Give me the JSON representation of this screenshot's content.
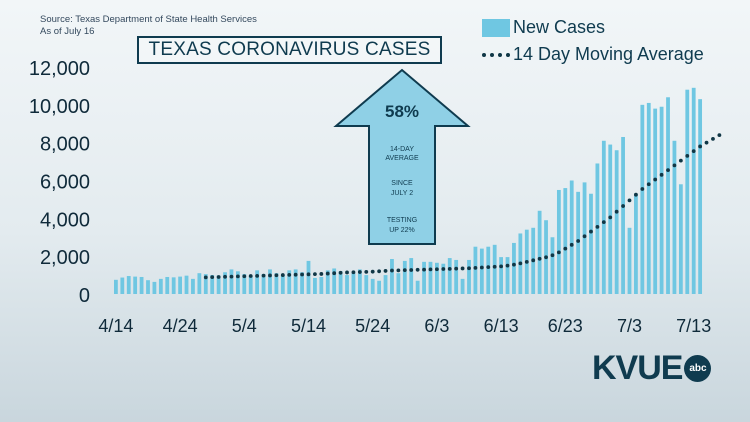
{
  "source": {
    "line1": "Source: Texas Department of State Health Services",
    "line2": "As of July 16"
  },
  "chart_data": {
    "type": "bar",
    "title": "TEXAS CORONAVIRUS CASES",
    "xlabel": "",
    "ylabel": "",
    "ylim": [
      0,
      12000
    ],
    "yticks": [
      "0",
      "2,000",
      "4,000",
      "6,000",
      "8,000",
      "10,000",
      "12,000"
    ],
    "xticks": [
      "4/14",
      "4/24",
      "5/4",
      "5/14",
      "5/24",
      "6/3",
      "6/13",
      "6/23",
      "7/3",
      "7/13"
    ],
    "legend": {
      "position": "top-right",
      "entries": [
        "New Cases",
        "14 Day Moving Average"
      ]
    },
    "grid": false,
    "series": [
      {
        "name": "New Cases",
        "kind": "bar",
        "color": "#6fc7e2",
        "values": [
          750,
          870,
          950,
          920,
          900,
          730,
          640,
          800,
          900,
          880,
          920,
          970,
          800,
          1100,
          1050,
          1000,
          980,
          1150,
          1300,
          1200,
          1050,
          950,
          1250,
          1050,
          1300,
          1100,
          1000,
          1250,
          1300,
          1150,
          1750,
          850,
          900,
          1250,
          1350,
          1200,
          1000,
          1100,
          1300,
          1000,
          800,
          700,
          1000,
          1850,
          1100,
          1750,
          1900,
          700,
          1700,
          1700,
          1650,
          1600,
          1900,
          1800,
          800,
          1800,
          2500,
          2400,
          2500,
          2600,
          1950,
          1950,
          2700,
          3200,
          3400,
          3500,
          4400,
          3900,
          3000,
          5500,
          5600,
          6000,
          5400,
          5900,
          5300,
          6900,
          8100,
          7900,
          7600,
          8300,
          3500,
          5300,
          10000,
          10100,
          9800,
          9900,
          10400,
          8100,
          5800,
          10800,
          10900,
          10300
        ]
      },
      {
        "name": "14 Day Moving Average",
        "kind": "dotted-line",
        "color": "#103746",
        "start_index": 14,
        "values": [
          880,
          890,
          900,
          910,
          920,
          930,
          940,
          950,
          960,
          970,
          980,
          990,
          1000,
          1010,
          1020,
          1030,
          1040,
          1050,
          1060,
          1080,
          1100,
          1120,
          1140,
          1150,
          1160,
          1170,
          1180,
          1200,
          1220,
          1240,
          1250,
          1260,
          1270,
          1280,
          1290,
          1300,
          1310,
          1320,
          1330,
          1340,
          1350,
          1360,
          1380,
          1400,
          1420,
          1440,
          1460,
          1500,
          1550,
          1620,
          1700,
          1780,
          1860,
          1940,
          2050,
          2200,
          2400,
          2600,
          2800,
          3050,
          3300,
          3550,
          3800,
          4050,
          4350,
          4650,
          4950,
          5250,
          5550,
          5800,
          6050,
          6300,
          6550,
          6800,
          7050,
          7300,
          7550,
          7800,
          8000,
          8200,
          8400
        ]
      }
    ],
    "annotation": {
      "headline": "58%",
      "lines": [
        "14-DAY",
        "AVERAGE",
        "SINCE",
        "JULY 2",
        "TESTING",
        "UP 22%"
      ]
    }
  },
  "logo": {
    "text": "KVUE",
    "badge": "abc"
  }
}
